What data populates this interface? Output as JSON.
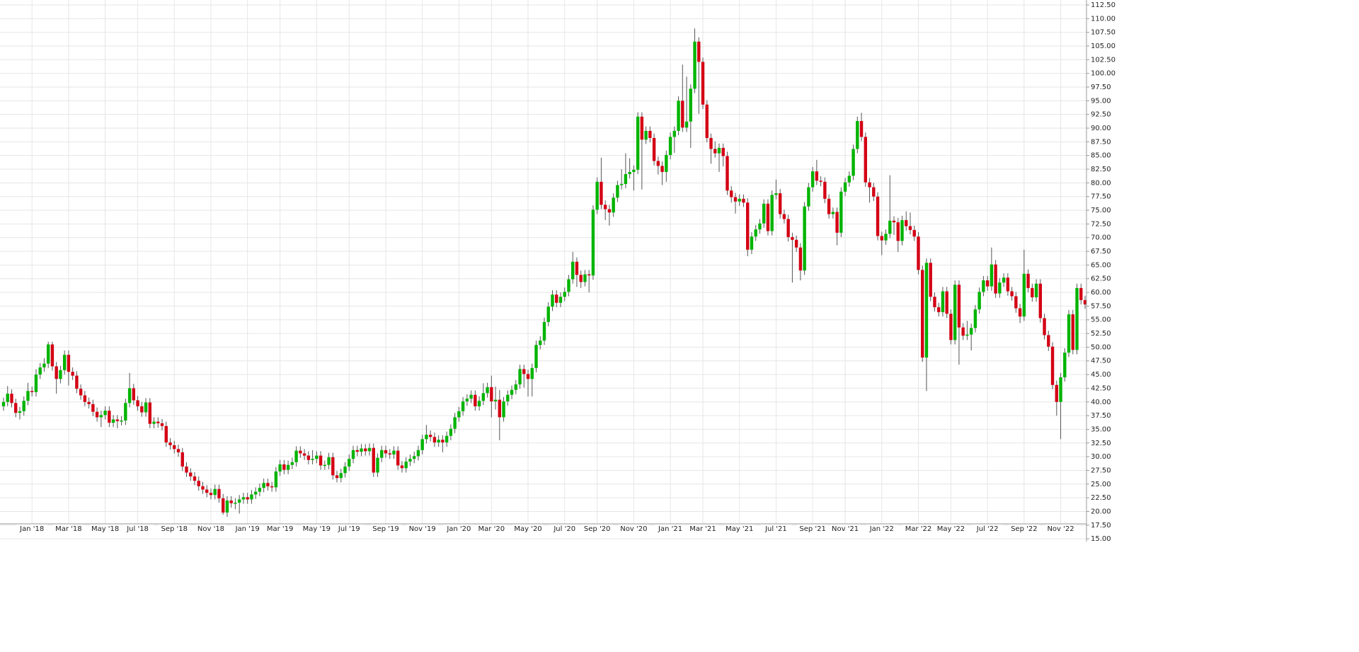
{
  "chart_data": {
    "type": "candlestick",
    "up_color": "#00b400",
    "down_color": "#d40014",
    "grid": true,
    "ylim": [
      14.5,
      113.4
    ],
    "yticks": [
      {
        "value": 15,
        "label": "15.00"
      },
      {
        "value": 17.5,
        "label": "17.50"
      },
      {
        "value": 20,
        "label": "20.00"
      },
      {
        "value": 22.5,
        "label": "22.50"
      },
      {
        "value": 25,
        "label": "25.00"
      },
      {
        "value": 27.5,
        "label": "27.50"
      },
      {
        "value": 30,
        "label": "30.00"
      },
      {
        "value": 32.5,
        "label": "32.50"
      },
      {
        "value": 35,
        "label": "35.00"
      },
      {
        "value": 37.5,
        "label": "37.50"
      },
      {
        "value": 40,
        "label": "40.00"
      },
      {
        "value": 42.5,
        "label": "42.50"
      },
      {
        "value": 45,
        "label": "45.00"
      },
      {
        "value": 47.5,
        "label": "47.50"
      },
      {
        "value": 50,
        "label": "50.00"
      },
      {
        "value": 52.5,
        "label": "52.50"
      },
      {
        "value": 55,
        "label": "55.00"
      },
      {
        "value": 57.5,
        "label": "57.50"
      },
      {
        "value": 60,
        "label": "60.00"
      },
      {
        "value": 62.5,
        "label": "62.50"
      },
      {
        "value": 65,
        "label": "65.00"
      },
      {
        "value": 67.5,
        "label": "67.50"
      },
      {
        "value": 70,
        "label": "70.00"
      },
      {
        "value": 72.5,
        "label": "72.50"
      },
      {
        "value": 75,
        "label": "75.00"
      },
      {
        "value": 77.5,
        "label": "77.50"
      },
      {
        "value": 80,
        "label": "80.00"
      },
      {
        "value": 82.5,
        "label": "82.50"
      },
      {
        "value": 85,
        "label": "85.00"
      },
      {
        "value": 87.5,
        "label": "87.50"
      },
      {
        "value": 90,
        "label": "90.00"
      },
      {
        "value": 92.5,
        "label": "92.50"
      },
      {
        "value": 95,
        "label": "95.00"
      },
      {
        "value": 97.5,
        "label": "97.50"
      },
      {
        "value": 100,
        "label": "100.00"
      },
      {
        "value": 102.5,
        "label": "102.50"
      },
      {
        "value": 105,
        "label": "105.00"
      },
      {
        "value": 107.5,
        "label": "107.50"
      },
      {
        "value": 110,
        "label": "110.00"
      },
      {
        "value": 112.5,
        "label": "112.50"
      }
    ],
    "categories": [
      null,
      null,
      null,
      null,
      null,
      null,
      null,
      "Jan '18",
      null,
      null,
      null,
      null,
      null,
      null,
      null,
      null,
      "Mar '18",
      null,
      null,
      null,
      null,
      null,
      null,
      null,
      null,
      "May '18",
      null,
      null,
      null,
      null,
      null,
      null,
      null,
      "Jul '18",
      null,
      null,
      null,
      null,
      null,
      null,
      null,
      null,
      "Sep '18",
      null,
      null,
      null,
      null,
      null,
      null,
      null,
      null,
      "Nov '18",
      null,
      null,
      null,
      null,
      null,
      null,
      null,
      null,
      "Jan '19",
      null,
      null,
      null,
      null,
      null,
      null,
      null,
      "Mar '19",
      null,
      null,
      null,
      null,
      null,
      null,
      null,
      null,
      "May '19",
      null,
      null,
      null,
      null,
      null,
      null,
      null,
      "Jul '19",
      null,
      null,
      null,
      null,
      null,
      null,
      null,
      null,
      "Sep '19",
      null,
      null,
      null,
      null,
      null,
      null,
      null,
      null,
      "Nov '19",
      null,
      null,
      null,
      null,
      null,
      null,
      null,
      null,
      "Jan '20",
      null,
      null,
      null,
      null,
      null,
      null,
      null,
      "Mar '20",
      null,
      null,
      null,
      null,
      null,
      null,
      null,
      null,
      "May '20",
      null,
      null,
      null,
      null,
      null,
      null,
      null,
      null,
      "Jul '20",
      null,
      null,
      null,
      null,
      null,
      null,
      null,
      "Sep '20",
      null,
      null,
      null,
      null,
      null,
      null,
      null,
      null,
      "Nov '20",
      null,
      null,
      null,
      null,
      null,
      null,
      null,
      null,
      "Jan '21",
      null,
      null,
      null,
      null,
      null,
      null,
      null,
      "Mar '21",
      null,
      null,
      null,
      null,
      null,
      null,
      null,
      null,
      "May '21",
      null,
      null,
      null,
      null,
      null,
      null,
      null,
      null,
      "Jul '21",
      null,
      null,
      null,
      null,
      null,
      null,
      null,
      null,
      "Sep '21",
      null,
      null,
      null,
      null,
      null,
      null,
      null,
      "Nov '21",
      null,
      null,
      null,
      null,
      null,
      null,
      null,
      null,
      "Jan '22",
      null,
      null,
      null,
      null,
      null,
      null,
      null,
      null,
      "Mar '22",
      null,
      null,
      null,
      null,
      null,
      null,
      null,
      "May '22",
      null,
      null,
      null,
      null,
      null,
      null,
      null,
      null,
      "Jul '22",
      null,
      null,
      null,
      null,
      null,
      null,
      null,
      null,
      "Sep '22",
      null,
      null,
      null,
      null,
      null,
      null,
      null,
      null,
      "Nov '22",
      null,
      null,
      null,
      null,
      null,
      null
    ],
    "open": [
      39.2,
      40,
      41.5,
      39.8,
      38,
      38.3,
      40.2,
      42,
      41.8,
      45,
      46.3,
      47,
      50.5,
      46.5,
      44.2,
      45.8,
      48.6,
      45.5,
      44.8,
      42.4,
      41.2,
      40,
      39.6,
      38.2,
      37.2,
      37.6,
      38.4,
      36.2,
      36.8,
      36.5,
      36.6,
      39.8,
      42.5,
      40.3,
      39.2,
      38.1,
      39.9,
      36,
      36.4,
      36.1,
      35.6,
      32.6,
      32.1,
      31.4,
      30.8,
      28.2,
      27.1,
      26.4,
      25.6,
      24.6,
      24,
      23.4,
      23,
      24.1,
      22.4,
      19.8,
      22,
      21.5,
      21.6,
      22.2,
      22.6,
      22.2,
      23.1,
      23.6,
      24.3,
      25.2,
      24.6,
      24.4,
      27.3,
      28.6,
      27.6,
      28.5,
      29,
      31.1,
      30.6,
      30.2,
      29.4,
      29.6,
      30.2,
      28.4,
      28.5,
      29.9,
      26.6,
      26.1,
      27,
      28.2,
      29.6,
      31.2,
      30.9,
      31.5,
      31,
      31.6,
      27.1,
      29.8,
      31.2,
      30.6,
      30.4,
      31.1,
      28.4,
      27.9,
      29.1,
      29.6,
      30.1,
      31.2,
      33.2,
      34,
      33.6,
      32.6,
      33.1,
      32.6,
      33.8,
      35.1,
      37.2,
      38.3,
      40.1,
      40.6,
      41.3,
      39.2,
      40.2,
      41.6,
      42.7,
      40.1,
      40.4,
      37.2,
      40.1,
      41.3,
      42.2,
      43.2,
      46,
      45.1,
      44.2,
      46.2,
      50.4,
      51.2,
      54.6,
      57.4,
      59.6,
      58.1,
      59.2,
      60.1,
      62.4,
      65.6,
      63.2,
      61.9,
      63.3,
      63.1,
      75.1,
      80.2,
      76,
      75.2,
      74.6,
      77.3,
      79.6,
      79.8,
      81.6,
      82,
      82.4,
      92.1,
      87.9,
      89.5,
      88.2,
      84,
      83.1,
      82,
      85.1,
      88.4,
      89.5,
      95,
      90.1,
      91.2,
      97.2,
      105.8,
      102.1,
      94.3,
      88.2,
      86.2,
      85.4,
      86.4,
      84.9,
      78.6,
      77.4,
      76.6,
      77.1,
      76.4,
      67.8,
      70.2,
      71.5,
      72.6,
      76.2,
      71.2,
      77.8,
      78.1,
      74.3,
      73.4,
      70.1,
      69.6,
      68.2,
      64,
      75.7,
      79.2,
      82.1,
      80.4,
      80.2,
      77.1,
      74.3,
      74.7,
      70.9,
      78.4,
      80.1,
      81.3,
      86.2,
      91.3,
      88.4,
      80.1,
      79.2,
      77.5,
      70.3,
      69.5,
      70.7,
      73.1,
      72.8,
      69.4,
      73.2,
      72.1,
      71.4,
      70.2,
      64.1,
      48.1,
      65.4,
      59.2,
      57.3,
      56.4,
      60.2,
      56.1,
      51.3,
      61.4,
      53.6,
      52.1,
      52.3,
      53.5,
      56.9,
      60.1,
      62.2,
      61.1,
      65.1,
      59.8,
      61.8,
      62.7,
      60.2,
      59.3,
      57.1,
      55.6,
      63.4,
      60.8,
      59.1,
      61.6,
      55.3,
      52.2,
      50.1,
      43.1,
      40,
      44.5,
      49,
      56,
      49.5,
      60.8,
      58.6
    ],
    "high": [
      40.8,
      42.9,
      42.3,
      40.6,
      39.1,
      41,
      43.5,
      42.8,
      46,
      47.1,
      48,
      51,
      51,
      47.3,
      46.6,
      49.4,
      49.4,
      46.3,
      45.6,
      43.2,
      42,
      40.8,
      40.4,
      39,
      38.4,
      39.2,
      39.2,
      37.6,
      37.6,
      37.4,
      40.6,
      45.3,
      43.3,
      41.1,
      40,
      40.7,
      40.7,
      37.2,
      37.2,
      36.9,
      36.4,
      33.4,
      32.9,
      32.2,
      31.6,
      29,
      27.9,
      27.2,
      26.4,
      25.4,
      24.8,
      24.2,
      24.9,
      24.9,
      23.2,
      22.8,
      22.8,
      22.4,
      23,
      23.4,
      23.4,
      23.9,
      24.4,
      25.1,
      26,
      26,
      25.4,
      28.1,
      29.4,
      29.4,
      29.3,
      29.8,
      31.9,
      31.9,
      31.4,
      31,
      31.2,
      31,
      31,
      29.3,
      30.7,
      30.7,
      27.4,
      27.8,
      29,
      30.4,
      32,
      32,
      32.3,
      32.3,
      32.4,
      32.4,
      30.6,
      32,
      32,
      31.4,
      31.9,
      31.9,
      29.2,
      29.9,
      30.4,
      30.9,
      32,
      34,
      35.8,
      34.8,
      34.4,
      33.9,
      33.9,
      34.6,
      35.9,
      38,
      39.1,
      40.9,
      41.4,
      42.1,
      42.1,
      41,
      43.4,
      43.5,
      44.8,
      42.8,
      42.2,
      40.9,
      42.1,
      43,
      44,
      46.8,
      46.8,
      45.9,
      47,
      51.2,
      52,
      55.4,
      58.2,
      60.4,
      60.4,
      60,
      60.9,
      63.2,
      67.4,
      66.4,
      64,
      64.1,
      64.1,
      75.9,
      81,
      84.6,
      76.8,
      76,
      78.1,
      80.4,
      82.5,
      85.4,
      84.5,
      83.2,
      92.9,
      92.9,
      90.3,
      90.3,
      89,
      84.8,
      83.9,
      85.9,
      89.2,
      90.3,
      95.8,
      101.6,
      99.4,
      98,
      108.2,
      106.6,
      102.9,
      95.1,
      89,
      87.6,
      87.2,
      87.2,
      85.7,
      79.4,
      78.2,
      77.9,
      77.9,
      77.2,
      71,
      72.3,
      73.4,
      77,
      77,
      78.6,
      80.6,
      78.9,
      75.1,
      74.2,
      70.9,
      70.4,
      69,
      76.5,
      80,
      82.9,
      84.2,
      81.2,
      81,
      77.9,
      75.5,
      75.5,
      79.2,
      80.9,
      82.1,
      87,
      92.1,
      92.8,
      89.2,
      80.9,
      80,
      78.3,
      71.1,
      71.5,
      81.4,
      73.9,
      73.6,
      74,
      74.8,
      74.6,
      72.2,
      71,
      64.9,
      66.2,
      66.2,
      60,
      58.1,
      61,
      61,
      56.9,
      62.2,
      62.2,
      54.4,
      54.8,
      54.3,
      57.7,
      60.9,
      63,
      63,
      68.2,
      65.9,
      62.6,
      63.5,
      63.5,
      61,
      60.1,
      57.9,
      67.8,
      64.2,
      61.6,
      62.4,
      62.4,
      56.1,
      53,
      50.9,
      43.9,
      45.3,
      49.8,
      56.8,
      56.8,
      61.6,
      61.6,
      59.4
    ],
    "low": [
      38.4,
      39.2,
      39,
      37.2,
      36.8,
      37.5,
      39.4,
      41,
      41,
      44.2,
      45.5,
      46.2,
      45.7,
      41.5,
      43.4,
      45,
      43,
      44,
      41.6,
      40.4,
      39.2,
      38.8,
      37.4,
      36.4,
      35.4,
      36.8,
      35.4,
      35.4,
      35.2,
      35.7,
      35.8,
      39,
      39.5,
      38.4,
      37.3,
      37.3,
      35.2,
      35.2,
      35.3,
      34.8,
      31.8,
      31.3,
      30.6,
      30,
      27.4,
      26.3,
      25.6,
      24.8,
      23.8,
      23.2,
      22.6,
      22.2,
      22.2,
      21.6,
      19.4,
      19,
      20.7,
      20.4,
      19.6,
      21.4,
      21.4,
      21.4,
      22.3,
      22.8,
      23.5,
      23.8,
      23.6,
      23.6,
      26.5,
      26.8,
      26.8,
      27.7,
      28.2,
      29.8,
      29.4,
      28.6,
      28.6,
      28.8,
      27.6,
      27.6,
      27.7,
      25.8,
      25.3,
      25.3,
      26.2,
      27.4,
      28.8,
      30.1,
      30.1,
      30.2,
      30.2,
      26.3,
      26.3,
      29,
      29.8,
      29.6,
      29.6,
      27.6,
      27.1,
      27.1,
      28.3,
      28.8,
      29.3,
      30.4,
      32.4,
      32.8,
      31.8,
      31.8,
      30.8,
      31.8,
      33,
      34.3,
      36.4,
      37.5,
      39.3,
      39.8,
      38.4,
      38.4,
      39.4,
      40.8,
      37.2,
      38.6,
      33,
      36.4,
      39.3,
      40.5,
      41.4,
      42.4,
      42.6,
      41,
      41,
      45.4,
      49.6,
      50.4,
      53.8,
      56.6,
      57.3,
      57.3,
      58.4,
      59.3,
      61.6,
      61,
      60.8,
      61.1,
      60,
      62.3,
      74.3,
      75.2,
      73.2,
      72.2,
      73.8,
      76.5,
      78.8,
      79,
      80.8,
      78.6,
      81.6,
      78.8,
      87.1,
      87.4,
      83.2,
      81.5,
      79.6,
      80.2,
      84.3,
      85.5,
      88.7,
      89.3,
      89.3,
      86.4,
      96.4,
      92.6,
      93.5,
      87.4,
      83.5,
      84.6,
      82,
      83,
      77.8,
      76.4,
      74.4,
      75.8,
      75.6,
      66.6,
      67,
      69.4,
      70.7,
      71.8,
      70.4,
      70.4,
      77,
      73.5,
      72.6,
      69.3,
      61.8,
      67.4,
      62.2,
      63.2,
      74.9,
      78.4,
      79.6,
      79.4,
      76.3,
      73.5,
      73.5,
      68.6,
      70.1,
      77.6,
      79.3,
      80.5,
      85.4,
      87.6,
      79.3,
      76.4,
      76.7,
      69.5,
      66.8,
      68.7,
      69.9,
      70.5,
      67.4,
      68.6,
      71.3,
      70.6,
      69.4,
      63.3,
      47.3,
      42,
      58.4,
      56.5,
      55.6,
      55.6,
      55.3,
      50.5,
      50.5,
      46.8,
      51.3,
      51.3,
      49.4,
      52.7,
      56.1,
      59.3,
      60.3,
      60.3,
      59,
      59,
      61,
      59.4,
      58.5,
      56.3,
      54.4,
      54.8,
      60,
      58.3,
      58.3,
      54.5,
      51.4,
      49.3,
      42.3,
      37.5,
      33.2,
      43.7,
      48.2,
      48.7,
      48.7,
      57.8,
      57
    ],
    "close": [
      40,
      41.5,
      39.8,
      38,
      38.3,
      40.2,
      42,
      41.8,
      45,
      46.3,
      47,
      50.5,
      46.5,
      44.2,
      45.8,
      48.6,
      45.5,
      44.8,
      42.4,
      41.2,
      40,
      39.6,
      38.2,
      37.2,
      37.6,
      38.4,
      36.2,
      36.8,
      36.5,
      36.6,
      39.8,
      42.5,
      40.3,
      39.2,
      38.1,
      39.9,
      36,
      36.4,
      36.1,
      35.6,
      32.6,
      32.1,
      31.4,
      30.8,
      28.2,
      27.1,
      26.4,
      25.6,
      24.6,
      24,
      23.4,
      23,
      24.1,
      22.4,
      19.8,
      22,
      21.5,
      21.6,
      22.2,
      22.6,
      22.2,
      23.1,
      23.6,
      24.3,
      25.2,
      24.6,
      24.4,
      27.3,
      28.6,
      27.6,
      28.5,
      29,
      31.1,
      30.6,
      30.2,
      29.4,
      29.6,
      30.2,
      28.4,
      28.5,
      29.9,
      26.6,
      26.1,
      27,
      28.2,
      29.6,
      31.2,
      30.9,
      31.5,
      31,
      31.6,
      27.1,
      29.8,
      31.2,
      30.6,
      30.4,
      31.1,
      28.4,
      27.9,
      29.1,
      29.6,
      30.1,
      31.2,
      33.2,
      34,
      33.6,
      32.6,
      33.1,
      32.6,
      33.8,
      35.1,
      37.2,
      38.3,
      40.1,
      40.6,
      41.3,
      39.2,
      40.2,
      41.6,
      42.7,
      40.1,
      40.4,
      37.2,
      40.1,
      41.3,
      42.2,
      43.2,
      46,
      45.1,
      44.2,
      46.2,
      50.4,
      51.2,
      54.6,
      57.4,
      59.6,
      58.1,
      59.2,
      60.1,
      62.4,
      65.6,
      63.2,
      61.9,
      63.3,
      63.1,
      75.1,
      80.2,
      76,
      75.2,
      74.6,
      77.3,
      79.6,
      79.8,
      81.6,
      82,
      82.4,
      92.1,
      87.9,
      89.5,
      88.2,
      84,
      83.1,
      82,
      85.1,
      88.4,
      89.5,
      95,
      90.1,
      91.2,
      97.2,
      105.8,
      102.1,
      94.3,
      88.2,
      86.2,
      85.4,
      86.4,
      84.9,
      78.6,
      77.4,
      76.6,
      77.1,
      76.4,
      67.8,
      70.2,
      71.5,
      72.6,
      76.2,
      71.2,
      77.8,
      78.1,
      74.3,
      73.4,
      70.1,
      69.6,
      68.2,
      64,
      75.7,
      79.2,
      82.1,
      80.4,
      80.2,
      77.1,
      74.3,
      74.7,
      70.9,
      78.4,
      80.1,
      81.3,
      86.2,
      91.3,
      88.4,
      80.1,
      79.2,
      77.5,
      70.3,
      69.5,
      70.7,
      73.1,
      72.8,
      69.4,
      73.2,
      72.1,
      71.4,
      70.2,
      64.1,
      48.1,
      65.4,
      59.2,
      57.3,
      56.4,
      60.2,
      56.1,
      51.3,
      61.4,
      53.6,
      52.1,
      52.3,
      53.5,
      56.9,
      60.1,
      62.2,
      61.1,
      65.1,
      59.8,
      61.8,
      62.7,
      60.2,
      59.3,
      57.1,
      55.6,
      63.4,
      60.8,
      59.1,
      61.6,
      55.3,
      52.2,
      50.1,
      43.1,
      40,
      44.5,
      49,
      56,
      49.5,
      60.8,
      58.6,
      57.8
    ]
  }
}
